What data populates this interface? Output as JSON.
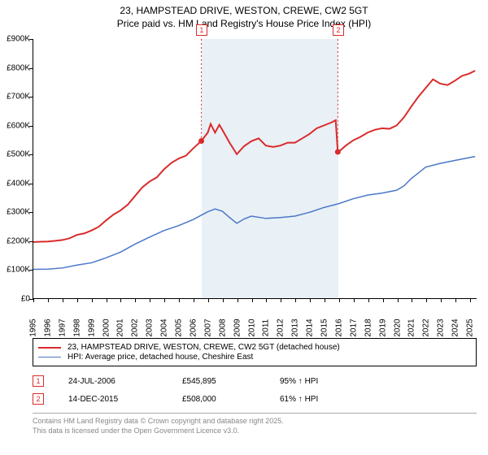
{
  "title": {
    "line1": "23, HAMPSTEAD DRIVE, WESTON, CREWE, CW2 5GT",
    "line2": "Price paid vs. HM Land Registry's House Price Index (HPI)"
  },
  "chart": {
    "type": "line",
    "x_min_year": 1995,
    "x_max_year": 2025.5,
    "y_min": 0,
    "y_max": 900000,
    "y_ticks": [
      0,
      100000,
      200000,
      300000,
      400000,
      500000,
      600000,
      700000,
      800000,
      900000
    ],
    "y_tick_labels": [
      "£0",
      "£100K",
      "£200K",
      "£300K",
      "£400K",
      "£500K",
      "£600K",
      "£700K",
      "£800K",
      "£900K"
    ],
    "x_tick_years": [
      1995,
      1996,
      1997,
      1998,
      1999,
      2000,
      2001,
      2002,
      2003,
      2004,
      2005,
      2006,
      2007,
      2008,
      2009,
      2010,
      2011,
      2012,
      2013,
      2014,
      2015,
      2016,
      2017,
      2018,
      2019,
      2020,
      2021,
      2022,
      2023,
      2024,
      2025
    ],
    "band": {
      "start_year": 2006.56,
      "end_year": 2015.95
    },
    "colors": {
      "series1": "#D92B2B",
      "series2": "#4B78C8",
      "axis": "#000000",
      "band": "rgba(70,130,180,0.12)",
      "grid": "#ffffff"
    },
    "line_widths": {
      "series1": 2,
      "series2": 1.5
    },
    "series1": {
      "name": "23, HAMPSTEAD DRIVE, WESTON, CREWE, CW2 5GT (detached house)",
      "points": [
        [
          1995.0,
          195000
        ],
        [
          1995.5,
          196000
        ],
        [
          1996.0,
          197000
        ],
        [
          1996.5,
          199000
        ],
        [
          1997.0,
          202000
        ],
        [
          1997.5,
          208000
        ],
        [
          1998.0,
          220000
        ],
        [
          1998.5,
          225000
        ],
        [
          1999.0,
          235000
        ],
        [
          1999.5,
          248000
        ],
        [
          2000.0,
          270000
        ],
        [
          2000.5,
          290000
        ],
        [
          2001.0,
          305000
        ],
        [
          2001.5,
          325000
        ],
        [
          2002.0,
          355000
        ],
        [
          2002.5,
          385000
        ],
        [
          2003.0,
          405000
        ],
        [
          2003.5,
          420000
        ],
        [
          2004.0,
          448000
        ],
        [
          2004.5,
          470000
        ],
        [
          2005.0,
          485000
        ],
        [
          2005.5,
          495000
        ],
        [
          2006.0,
          520000
        ],
        [
          2006.56,
          545895
        ],
        [
          2007.0,
          575000
        ],
        [
          2007.2,
          605000
        ],
        [
          2007.5,
          575000
        ],
        [
          2007.8,
          602000
        ],
        [
          2008.0,
          585000
        ],
        [
          2008.5,
          540000
        ],
        [
          2009.0,
          500000
        ],
        [
          2009.5,
          528000
        ],
        [
          2010.0,
          545000
        ],
        [
          2010.5,
          555000
        ],
        [
          2011.0,
          530000
        ],
        [
          2011.5,
          525000
        ],
        [
          2012.0,
          530000
        ],
        [
          2012.5,
          540000
        ],
        [
          2013.0,
          540000
        ],
        [
          2013.5,
          555000
        ],
        [
          2014.0,
          570000
        ],
        [
          2014.5,
          590000
        ],
        [
          2015.0,
          600000
        ],
        [
          2015.5,
          610000
        ],
        [
          2015.8,
          618000
        ],
        [
          2015.95,
          508000
        ],
        [
          2016.0,
          508000
        ],
        [
          2016.5,
          530000
        ],
        [
          2017.0,
          548000
        ],
        [
          2017.5,
          560000
        ],
        [
          2018.0,
          575000
        ],
        [
          2018.5,
          585000
        ],
        [
          2019.0,
          590000
        ],
        [
          2019.5,
          588000
        ],
        [
          2020.0,
          600000
        ],
        [
          2020.5,
          628000
        ],
        [
          2021.0,
          665000
        ],
        [
          2021.5,
          700000
        ],
        [
          2022.0,
          730000
        ],
        [
          2022.5,
          760000
        ],
        [
          2023.0,
          745000
        ],
        [
          2023.5,
          740000
        ],
        [
          2024.0,
          755000
        ],
        [
          2024.5,
          772000
        ],
        [
          2025.0,
          780000
        ],
        [
          2025.4,
          790000
        ]
      ]
    },
    "series2": {
      "name": "HPI: Average price, detached house, Cheshire East",
      "points": [
        [
          1995.0,
          100000
        ],
        [
          1996.0,
          101000
        ],
        [
          1997.0,
          105000
        ],
        [
          1998.0,
          115000
        ],
        [
          1999.0,
          123000
        ],
        [
          2000.0,
          140000
        ],
        [
          2001.0,
          160000
        ],
        [
          2002.0,
          188000
        ],
        [
          2003.0,
          212000
        ],
        [
          2004.0,
          235000
        ],
        [
          2005.0,
          252000
        ],
        [
          2006.0,
          273000
        ],
        [
          2007.0,
          300000
        ],
        [
          2007.5,
          310000
        ],
        [
          2008.0,
          302000
        ],
        [
          2008.5,
          280000
        ],
        [
          2009.0,
          260000
        ],
        [
          2009.5,
          275000
        ],
        [
          2010.0,
          285000
        ],
        [
          2011.0,
          277000
        ],
        [
          2012.0,
          280000
        ],
        [
          2013.0,
          285000
        ],
        [
          2014.0,
          298000
        ],
        [
          2015.0,
          315000
        ],
        [
          2016.0,
          328000
        ],
        [
          2017.0,
          345000
        ],
        [
          2018.0,
          358000
        ],
        [
          2019.0,
          365000
        ],
        [
          2020.0,
          375000
        ],
        [
          2020.5,
          390000
        ],
        [
          2021.0,
          415000
        ],
        [
          2022.0,
          455000
        ],
        [
          2023.0,
          468000
        ],
        [
          2024.0,
          478000
        ],
        [
          2025.0,
          488000
        ],
        [
          2025.4,
          492000
        ]
      ]
    },
    "markers": [
      {
        "n": "1",
        "year": 2006.56,
        "price": 545895,
        "color": "#D92B2B"
      },
      {
        "n": "2",
        "year": 2015.95,
        "price": 508000,
        "color": "#D92B2B"
      }
    ]
  },
  "legend": {
    "item1": "23, HAMPSTEAD DRIVE, WESTON, CREWE, CW2 5GT (detached house)",
    "item2": "HPI: Average price, detached house, Cheshire East"
  },
  "sales": [
    {
      "n": "1",
      "date": "24-JUL-2006",
      "price": "£545,895",
      "pct": "95% ↑ HPI",
      "color": "#D92B2B"
    },
    {
      "n": "2",
      "date": "14-DEC-2015",
      "price": "£508,000",
      "pct": "61% ↑ HPI",
      "color": "#D92B2B"
    }
  ],
  "footer": {
    "line1": "Contains HM Land Registry data © Crown copyright and database right 2025.",
    "line2": "This data is licensed under the Open Government Licence v3.0."
  }
}
